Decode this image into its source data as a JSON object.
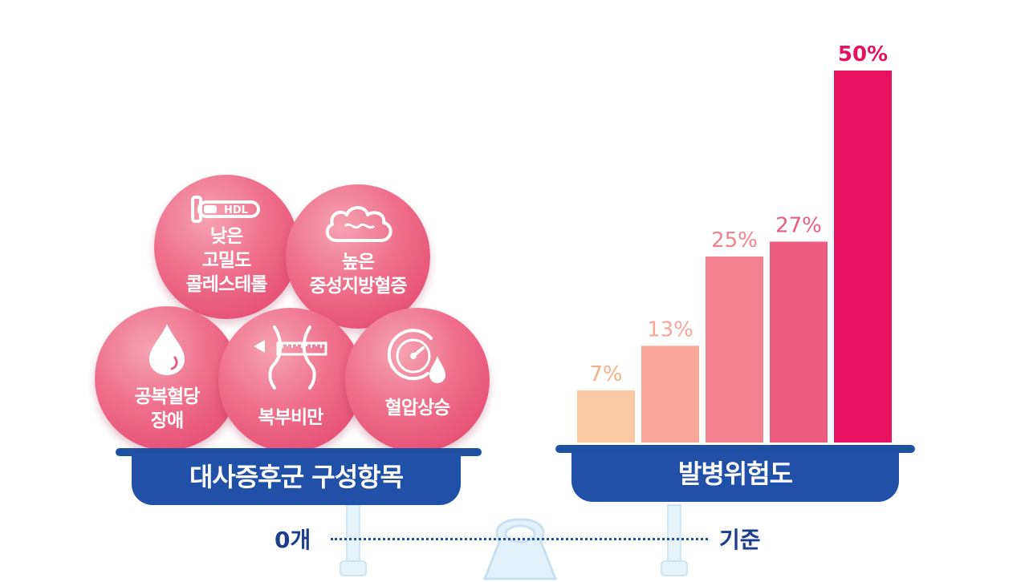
{
  "components": {
    "title": "대사증후군 구성항목",
    "items": [
      {
        "id": "hdl",
        "icon": "test-tube-icon",
        "icon_text": "HDL",
        "label": "낮은\n고밀도\n콜레스테롤"
      },
      {
        "id": "tg",
        "icon": "cloud-icon",
        "label": "높은\n중성지방혈증"
      },
      {
        "id": "glucose",
        "icon": "blood-drop-icon",
        "label": "공복혈당\n장애"
      },
      {
        "id": "waist",
        "icon": "waist-measure-icon",
        "label": "복부비만"
      },
      {
        "id": "bp",
        "icon": "blood-pressure-gauge-icon",
        "label": "혈압상승"
      }
    ]
  },
  "risk": {
    "title": "발병위험도"
  },
  "scale": {
    "left_label": "0개",
    "right_label": "기준"
  },
  "chart_data": {
    "type": "bar",
    "values": [
      7,
      13,
      25,
      27,
      50
    ],
    "labels": [
      "7%",
      "13%",
      "25%",
      "27%",
      "50%"
    ],
    "colors": [
      "#fbc9a3",
      "#f8a79a",
      "#f3828e",
      "#ee5b80",
      "#e6115f"
    ],
    "ylim": [
      0,
      50
    ]
  }
}
